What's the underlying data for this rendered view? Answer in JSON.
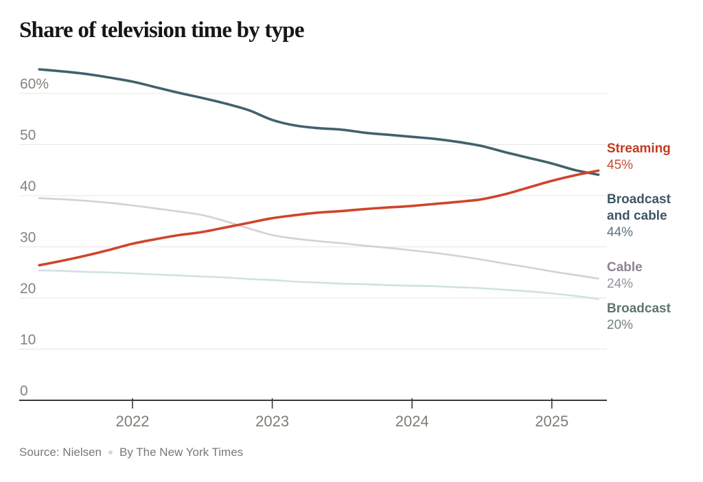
{
  "title": "Share of television time by type",
  "source": {
    "source_text": "Source: Nielsen",
    "byline_text": "By The New York Times"
  },
  "colors": {
    "background": "#ffffff",
    "title_text": "#161616",
    "axis": "#3b3b3b",
    "gridline": "#ebe9e6",
    "y_tick_label": "#86827c",
    "x_tick_label": "#807c76",
    "source_text": "#7b7676",
    "separator_dot": "#d8d5d3"
  },
  "chart_data": {
    "type": "line",
    "title": "Share of television time by type",
    "xlabel": "",
    "ylabel": "",
    "grid": true,
    "legend_position": "right-end-labels",
    "ylim": [
      0,
      65
    ],
    "y_ticks": [
      0,
      10,
      20,
      30,
      40,
      50,
      60
    ],
    "y_tick_labels": [
      "0",
      "10",
      "20",
      "30",
      "40",
      "50",
      "60%"
    ],
    "x_ticks": [
      2022,
      2023,
      2024,
      2025
    ],
    "x_tick_labels": [
      "2022",
      "2023",
      "2024",
      "2025"
    ],
    "x": [
      2021.333,
      2021.5,
      2021.667,
      2021.833,
      2022,
      2022.167,
      2022.333,
      2022.5,
      2022.667,
      2022.833,
      2023,
      2023.167,
      2023.333,
      2023.5,
      2023.667,
      2023.833,
      2024,
      2024.167,
      2024.333,
      2024.5,
      2024.667,
      2024.833,
      2025,
      2025.167,
      2025.333
    ],
    "series": [
      {
        "name": "Streaming",
        "end_label": "45%",
        "end_value": 45,
        "color": "#cf4529",
        "label_color": "#c23a20",
        "value_color": "#c94b2f",
        "stroke_width": 3.6,
        "values": [
          26.4,
          27.3,
          28.3,
          29.4,
          30.6,
          31.5,
          32.3,
          32.9,
          33.8,
          34.7,
          35.6,
          36.2,
          36.7,
          37.0,
          37.4,
          37.7,
          38.0,
          38.4,
          38.8,
          39.3,
          40.3,
          41.6,
          42.9,
          44.0,
          44.9
        ]
      },
      {
        "name": "Broadcast and cable",
        "end_label": "44%",
        "end_value": 44,
        "color": "#42616c",
        "label_color": "#3e5765",
        "value_color": "#5d737d",
        "stroke_width": 3.6,
        "values": [
          64.7,
          64.3,
          63.8,
          63.1,
          62.3,
          61.2,
          60.1,
          59.1,
          58.0,
          56.7,
          54.8,
          53.7,
          53.2,
          52.9,
          52.3,
          51.9,
          51.5,
          51.1,
          50.5,
          49.7,
          48.5,
          47.4,
          46.3,
          45.0,
          44.1
        ]
      },
      {
        "name": "Cable",
        "end_label": "24%",
        "end_value": 24,
        "color": "#d9cedb",
        "label_color": "#8b8391",
        "value_color": "#958f9c",
        "stroke_width": 2.7,
        "values": [
          39.5,
          39.3,
          39.0,
          38.6,
          38.1,
          37.5,
          36.9,
          36.2,
          35.0,
          33.6,
          32.3,
          31.6,
          31.1,
          30.7,
          30.2,
          29.8,
          29.3,
          28.8,
          28.2,
          27.5,
          26.7,
          26.0,
          25.2,
          24.5,
          23.8
        ]
      },
      {
        "name": "Broadcast",
        "end_label": "20%",
        "end_value": 20,
        "color": "#d2e1e4",
        "label_color": "#5e7571",
        "value_color": "#75827e",
        "stroke_width": 2.7,
        "values": [
          25.4,
          25.3,
          25.1,
          25.0,
          24.8,
          24.6,
          24.4,
          24.2,
          24.0,
          23.7,
          23.5,
          23.2,
          23.0,
          22.8,
          22.7,
          22.5,
          22.4,
          22.3,
          22.1,
          21.9,
          21.6,
          21.3,
          20.9,
          20.4,
          19.8
        ]
      }
    ]
  }
}
